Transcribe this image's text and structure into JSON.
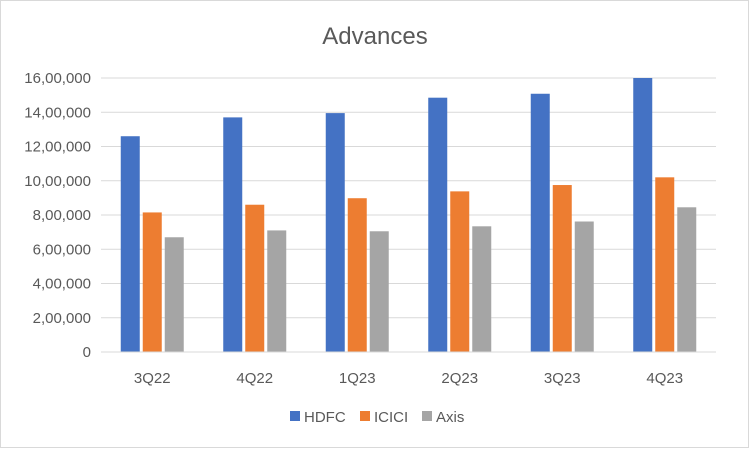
{
  "chart_data": {
    "type": "bar",
    "title": "Advances",
    "xlabel": "",
    "ylabel": "",
    "categories": [
      "3Q22",
      "4Q22",
      "1Q23",
      "2Q23",
      "3Q23",
      "4Q23"
    ],
    "series": [
      {
        "name": "HDFC",
        "color": "#4472C4",
        "values": [
          1260000,
          1370000,
          1395000,
          1485000,
          1508000,
          1600000
        ]
      },
      {
        "name": "ICICI",
        "color": "#ED7D31",
        "values": [
          815000,
          860000,
          898000,
          938000,
          975000,
          1020000
        ]
      },
      {
        "name": "Axis",
        "color": "#A5A5A5",
        "values": [
          670000,
          710000,
          705000,
          734000,
          762000,
          845000
        ]
      }
    ],
    "ylim": [
      0,
      1600000
    ],
    "yticks": [
      0,
      200000,
      400000,
      600000,
      800000,
      1000000,
      1200000,
      1400000,
      1600000
    ],
    "ytick_labels": [
      "0",
      "2,00,000",
      "4,00,000",
      "6,00,000",
      "8,00,000",
      "10,00,000",
      "12,00,000",
      "14,00,000",
      "16,00,000"
    ],
    "grid": true,
    "legend_position": "bottom"
  }
}
